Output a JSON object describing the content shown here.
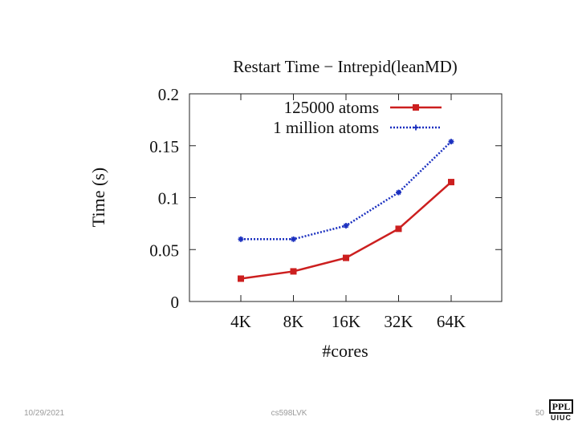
{
  "chart_data": {
    "type": "line",
    "title": "Restart Time − Intrepid(leanMD)",
    "xlabel": "#cores",
    "ylabel": "Time (s)",
    "categories": [
      "4K",
      "8K",
      "16K",
      "32K",
      "64K"
    ],
    "ylim": [
      0,
      0.2
    ],
    "yticks": [
      0,
      0.05,
      0.1,
      0.15,
      0.2
    ],
    "ytick_labels": [
      "0",
      "0.05",
      "0.1",
      "0.15",
      "0.2"
    ],
    "grid": false,
    "legend_position": "top-right",
    "series": [
      {
        "name": "125000 atoms",
        "color": "#cc1f1f",
        "style": "solid",
        "marker": "square",
        "values": [
          0.022,
          0.029,
          0.042,
          0.07,
          0.115
        ]
      },
      {
        "name": "1 million atoms",
        "color": "#1a2fbf",
        "style": "dotted",
        "marker": "star",
        "values": [
          0.06,
          0.06,
          0.073,
          0.105,
          0.154
        ]
      }
    ]
  },
  "footer": {
    "date": "10/29/2021",
    "center": "cs598LVK",
    "page": "50"
  },
  "logo": {
    "top": "PPL",
    "bottom": "UIUC"
  }
}
